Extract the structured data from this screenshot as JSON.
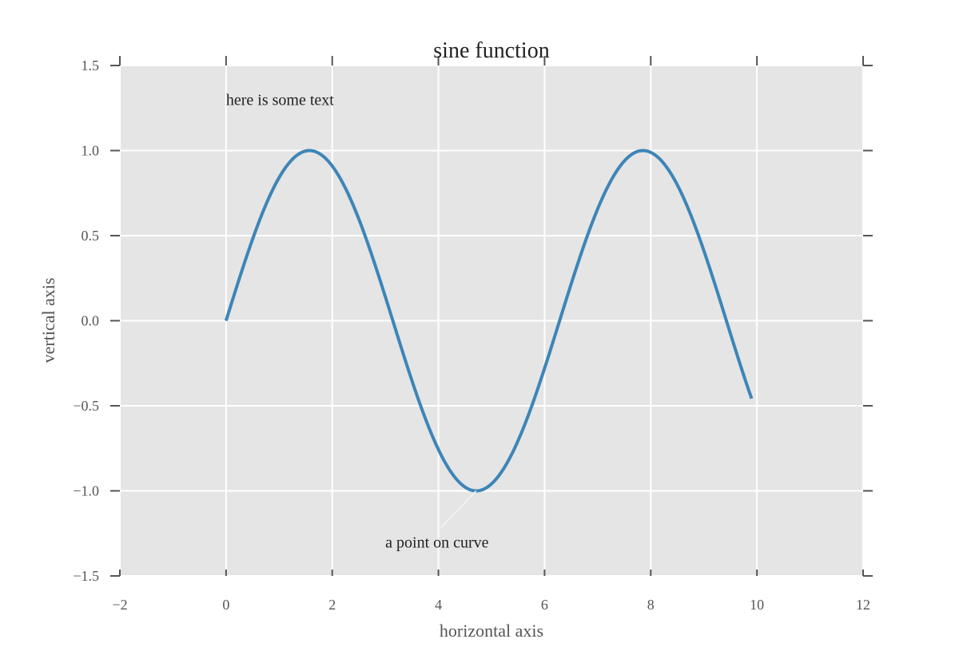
{
  "chart_data": {
    "type": "line",
    "title": "sine function",
    "xlabel": "horizontal axis",
    "ylabel": "vertical axis",
    "xlim": [
      -2,
      12
    ],
    "ylim": [
      -1.5,
      1.5
    ],
    "grid": true,
    "xticks": [
      -2,
      0,
      2,
      4,
      6,
      8,
      10,
      12
    ],
    "xtick_labels": [
      "−2",
      "0",
      "2",
      "4",
      "6",
      "8",
      "10",
      "12"
    ],
    "yticks": [
      -1.5,
      -1.0,
      -0.5,
      0.0,
      0.5,
      1.0,
      1.5
    ],
    "ytick_labels": [
      "−1.5",
      "−1.0",
      "−0.5",
      "0.0",
      "0.5",
      "1.0",
      "1.5"
    ],
    "series": [
      {
        "x_start": 0,
        "x_end": 9.9,
        "function": "sin(x)",
        "color": "#3d85b8"
      }
    ],
    "annotations": [
      {
        "text": "here is some text",
        "x": 0,
        "y": 1.3,
        "arrow": false
      },
      {
        "text": "a point on curve",
        "x": 3,
        "y": -1.3,
        "arrow": true,
        "target_x": 4.71,
        "target_y": -1.0
      }
    ],
    "colors": {
      "plot_background": "#e5e5e5",
      "grid": "#ffffff",
      "tick": "#555555"
    }
  }
}
